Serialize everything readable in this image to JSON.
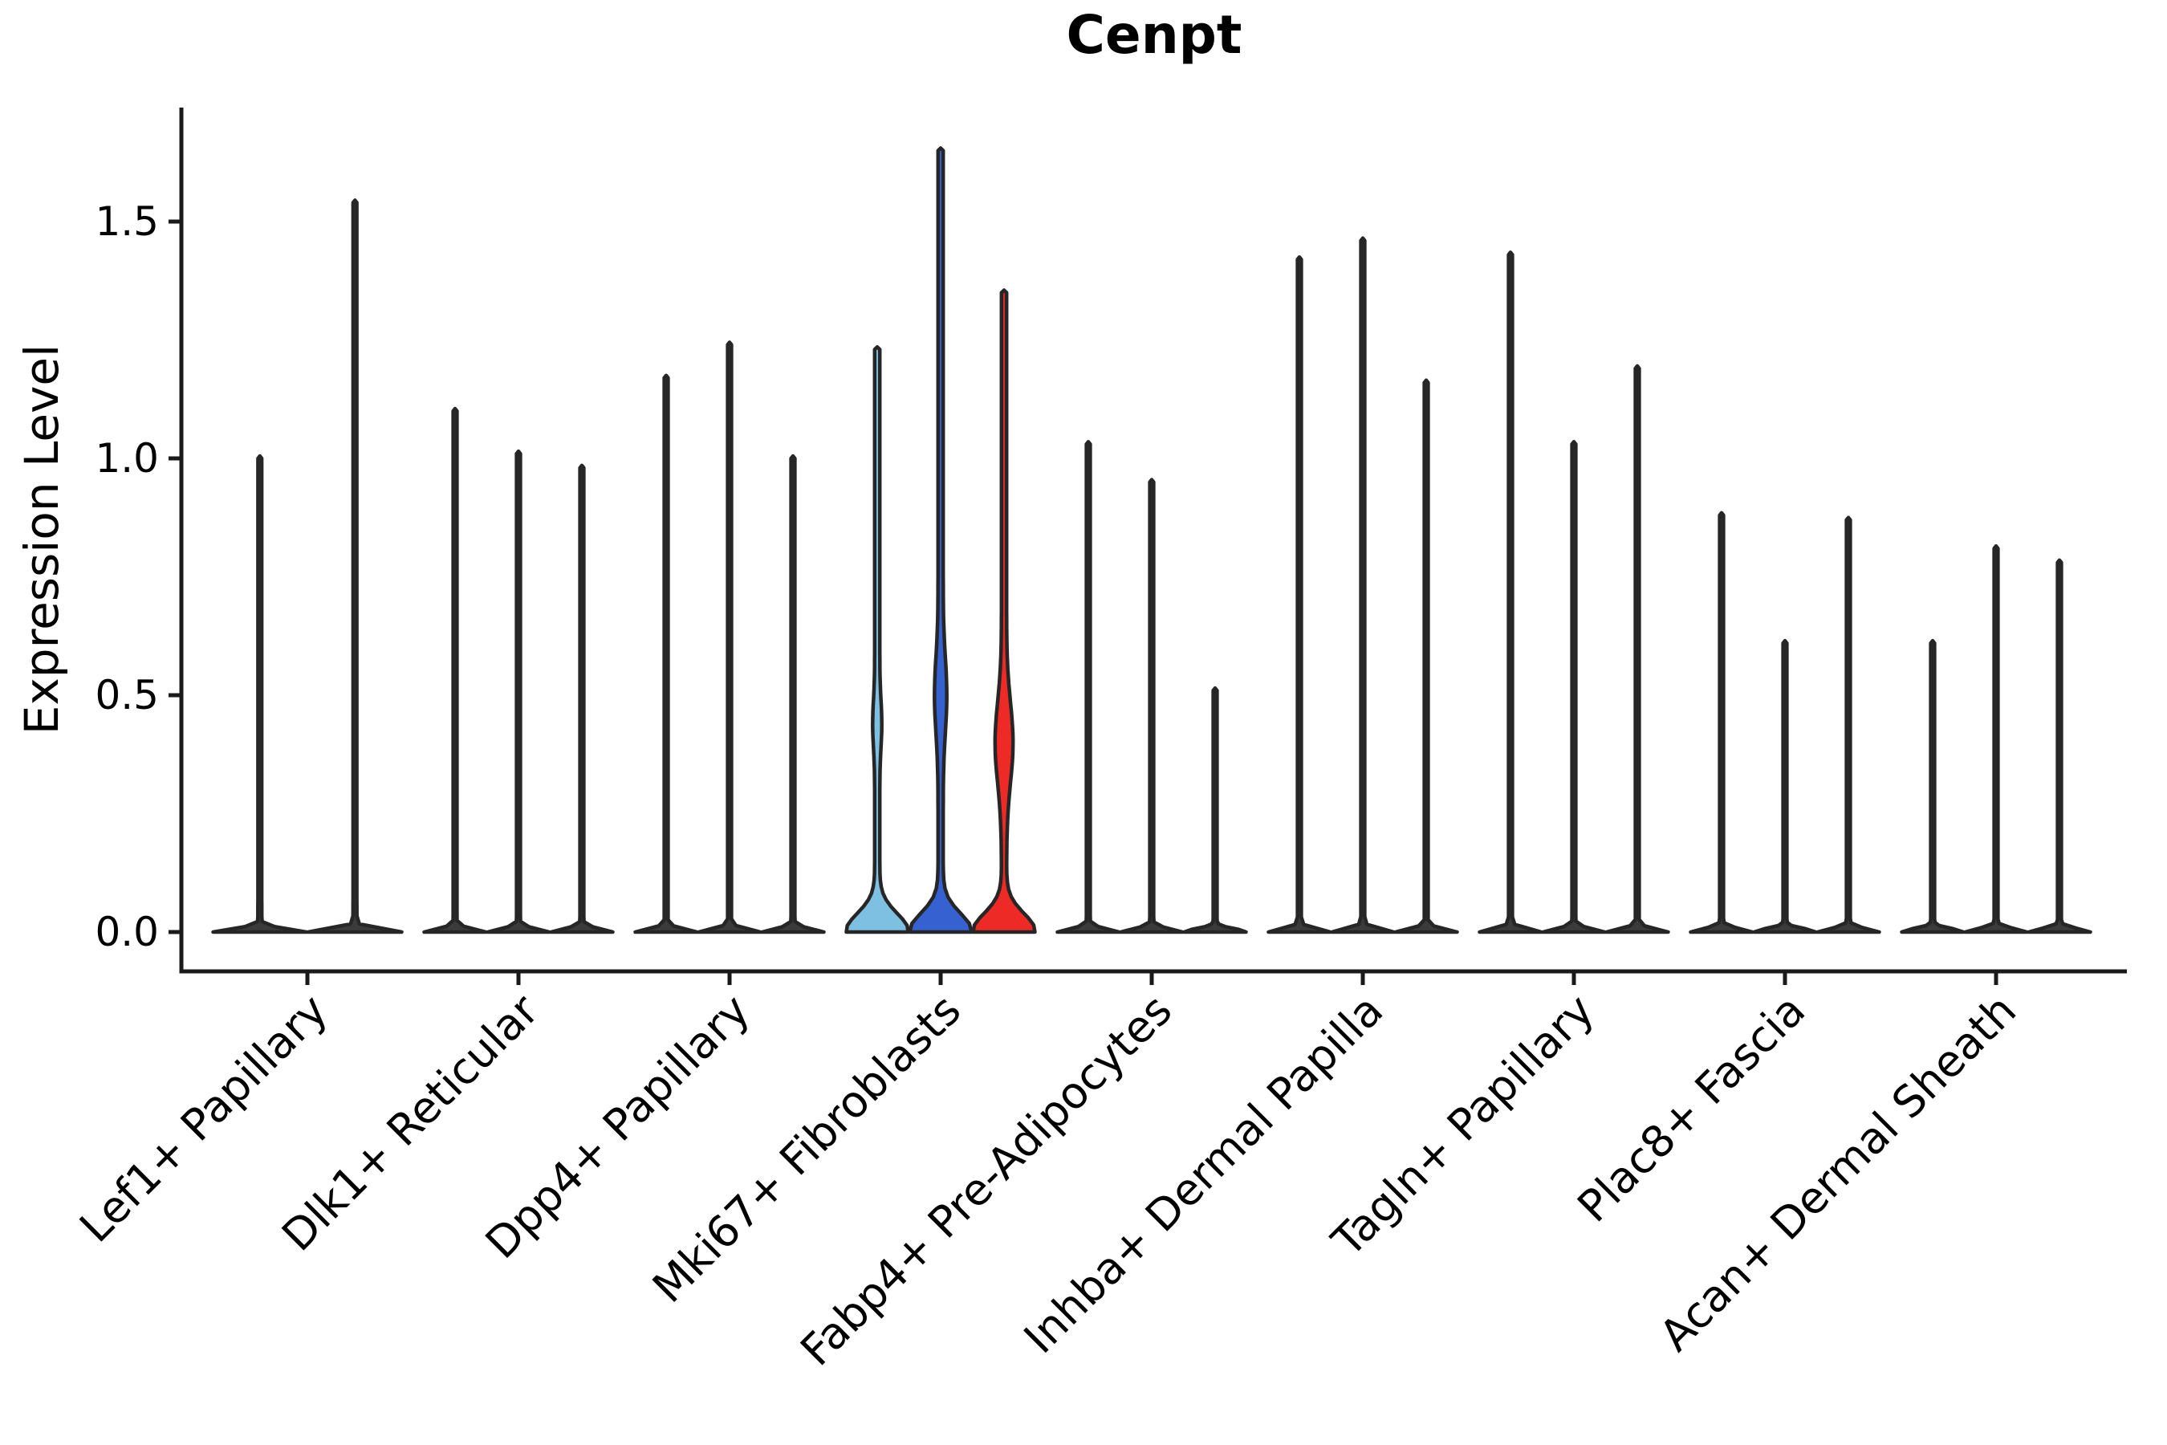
{
  "chart_data": {
    "type": "violin",
    "title": "Cenpt",
    "ylabel": "Expression Level",
    "xlabel": "",
    "ylim": [
      -0.08,
      1.74
    ],
    "grid": false,
    "legend_position": "none",
    "yticks": [
      {
        "value": 0.0,
        "label": "0.0"
      },
      {
        "value": 0.5,
        "label": "0.5"
      },
      {
        "value": 1.0,
        "label": "1.0"
      },
      {
        "value": 1.5,
        "label": "1.5"
      }
    ],
    "colors": {
      "default_fill": "#3b3b3b",
      "outline": "#262626",
      "axis": "#1a1a1a",
      "highlight_light_blue": "#7EC0E1",
      "highlight_dark_blue": "#3661D0",
      "highlight_red": "#EE2A26"
    },
    "categories": [
      "Lef1+ Papillary",
      "Dlk1+ Reticular",
      "Dpp4+ Papillary",
      "Mki67+ Fibroblasts",
      "Fabp4+ Pre-Adipocytes",
      "Inhba+ Dermal Papilla",
      "Tagln+ Papillary",
      "Plac8+ Fascia",
      "Acan+ Dermal Sheath"
    ],
    "groups": [
      {
        "category": "Lef1+ Papillary",
        "violins": [
          {
            "max": 1.0
          },
          {
            "max": 1.54
          }
        ]
      },
      {
        "category": "Dlk1+ Reticular",
        "violins": [
          {
            "max": 1.1
          },
          {
            "max": 1.01
          },
          {
            "max": 0.98
          }
        ]
      },
      {
        "category": "Dpp4+ Papillary",
        "violins": [
          {
            "max": 1.17
          },
          {
            "max": 1.24
          },
          {
            "max": 1.0
          }
        ]
      },
      {
        "category": "Mki67+ Fibroblasts",
        "violins": [
          {
            "max": 1.23,
            "fill": "#7EC0E1",
            "bulge": {
              "center": 0.44,
              "sd": 0.07,
              "amp": 2.5
            }
          },
          {
            "max": 1.65,
            "fill": "#3661D0",
            "bulge": {
              "center": 0.5,
              "sd": 0.11,
              "amp": 4.5
            }
          },
          {
            "max": 1.35,
            "fill": "#EE2A26",
            "bulge": {
              "center": 0.4,
              "sd": 0.12,
              "amp": 8
            }
          }
        ]
      },
      {
        "category": "Fabp4+ Pre-Adipocytes",
        "violins": [
          {
            "max": 1.03
          },
          {
            "max": 0.95
          },
          {
            "max": 0.51
          }
        ]
      },
      {
        "category": "Inhba+ Dermal Papilla",
        "violins": [
          {
            "max": 1.42
          },
          {
            "max": 1.46
          },
          {
            "max": 1.16
          }
        ]
      },
      {
        "category": "Tagln+ Papillary",
        "violins": [
          {
            "max": 1.43
          },
          {
            "max": 1.03
          },
          {
            "max": 1.19
          }
        ]
      },
      {
        "category": "Plac8+ Fascia",
        "violins": [
          {
            "max": 0.88
          },
          {
            "max": 0.61
          },
          {
            "max": 0.87
          }
        ]
      },
      {
        "category": "Acan+ Dermal Sheath",
        "violins": [
          {
            "max": 0.61
          },
          {
            "max": 0.81
          },
          {
            "max": 0.78
          }
        ]
      }
    ]
  }
}
